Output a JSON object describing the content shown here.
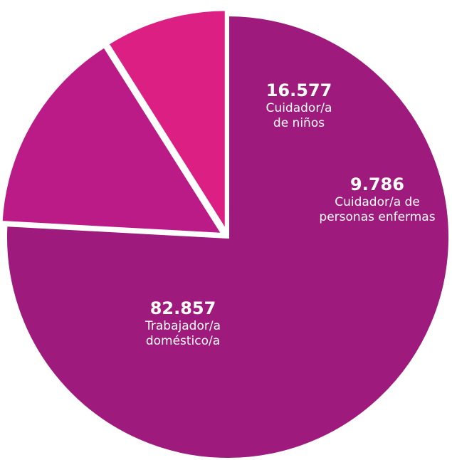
{
  "chart_data": {
    "type": "pie",
    "slices": [
      {
        "label_lines": [
          "Trabajador/a",
          "doméstico/a"
        ],
        "value": 82857,
        "value_label": "82.857",
        "color": "#9e1a7c",
        "exploded": false
      },
      {
        "label_lines": [
          "Cuidador/a",
          "de niños"
        ],
        "value": 16577,
        "value_label": "16.577",
        "color": "#bb1b86",
        "exploded": true
      },
      {
        "label_lines": [
          "Cuidador/a de",
          "personas enfermas"
        ],
        "value": 9786,
        "value_label": "9.786",
        "color": "#db1f83",
        "exploded": true
      }
    ],
    "start_angle_deg": 0,
    "direction": "clockwise",
    "separator_color": "#ffffff"
  }
}
